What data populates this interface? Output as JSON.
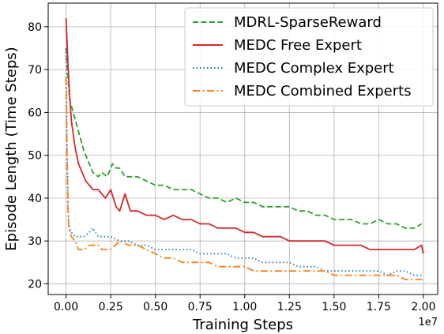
{
  "chart_data": {
    "type": "line",
    "xlabel": "Training Steps",
    "ylabel": "Episode Length (Time Steps)",
    "x_offset_label": "1e7",
    "xlim": [
      -0.1,
      2.08
    ],
    "ylim": [
      17.5,
      85.5
    ],
    "x_ticks": [
      0.0,
      0.25,
      0.5,
      0.75,
      1.0,
      1.25,
      1.5,
      1.75,
      2.0
    ],
    "x_tick_labels": [
      "0.00",
      "0.25",
      "0.50",
      "0.75",
      "1.00",
      "1.25",
      "1.50",
      "1.75",
      "2.00"
    ],
    "y_ticks": [
      20,
      30,
      40,
      50,
      60,
      70,
      80
    ],
    "y_tick_labels": [
      "20",
      "30",
      "40",
      "50",
      "60",
      "70",
      "80"
    ],
    "grid": true,
    "legend_position": "top-right",
    "series": [
      {
        "name": "MDRL-SparseReward",
        "color": "#2ca02c",
        "dash": "dashed",
        "x": [
          0.0,
          0.02,
          0.04,
          0.06,
          0.08,
          0.1,
          0.12,
          0.15,
          0.18,
          0.2,
          0.23,
          0.26,
          0.28,
          0.3,
          0.33,
          0.36,
          0.4,
          0.45,
          0.5,
          0.55,
          0.6,
          0.65,
          0.7,
          0.75,
          0.8,
          0.85,
          0.9,
          0.95,
          1.0,
          1.05,
          1.1,
          1.15,
          1.2,
          1.25,
          1.3,
          1.35,
          1.4,
          1.45,
          1.5,
          1.55,
          1.6,
          1.65,
          1.7,
          1.75,
          1.8,
          1.85,
          1.9,
          1.95,
          1.99
        ],
        "y": [
          75,
          63,
          60,
          57,
          54,
          51,
          49,
          46,
          45,
          46,
          45,
          48,
          47,
          47,
          45,
          45,
          45,
          44,
          43,
          43,
          42,
          42,
          42,
          41,
          40,
          40,
          39,
          40,
          39,
          39,
          38,
          38,
          38,
          38,
          37,
          37,
          36,
          36,
          35,
          35,
          35,
          34,
          34,
          35,
          34,
          34,
          33,
          33,
          34
        ]
      },
      {
        "name": "MEDC Free Expert",
        "color": "#d62728",
        "dash": "solid",
        "x": [
          0.0,
          0.01,
          0.02,
          0.03,
          0.05,
          0.07,
          0.09,
          0.11,
          0.13,
          0.15,
          0.18,
          0.2,
          0.22,
          0.25,
          0.28,
          0.3,
          0.33,
          0.36,
          0.4,
          0.45,
          0.5,
          0.55,
          0.6,
          0.65,
          0.7,
          0.75,
          0.8,
          0.85,
          0.9,
          0.95,
          1.0,
          1.05,
          1.1,
          1.15,
          1.2,
          1.25,
          1.3,
          1.35,
          1.4,
          1.45,
          1.5,
          1.55,
          1.6,
          1.65,
          1.7,
          1.75,
          1.8,
          1.85,
          1.9,
          1.95,
          1.99,
          2.0
        ],
        "y": [
          82,
          72,
          64,
          58,
          52,
          48,
          46,
          44,
          43,
          42,
          42,
          41,
          40,
          42,
          38,
          37,
          41,
          37,
          37,
          36,
          36,
          35,
          36,
          35,
          35,
          34,
          34,
          33,
          33,
          33,
          32,
          32,
          31,
          31,
          31,
          30,
          30,
          30,
          30,
          30,
          29,
          29,
          29,
          29,
          28,
          28,
          28,
          28,
          28,
          28,
          29,
          27
        ]
      },
      {
        "name": "MEDC Complex Expert",
        "color": "#1f77b4",
        "dash": "dotted",
        "x": [
          0.0,
          0.005,
          0.01,
          0.015,
          0.02,
          0.03,
          0.05,
          0.07,
          0.1,
          0.13,
          0.15,
          0.18,
          0.2,
          0.25,
          0.3,
          0.35,
          0.4,
          0.45,
          0.5,
          0.55,
          0.6,
          0.65,
          0.7,
          0.75,
          0.8,
          0.85,
          0.9,
          0.95,
          1.0,
          1.05,
          1.1,
          1.15,
          1.2,
          1.25,
          1.3,
          1.35,
          1.4,
          1.45,
          1.5,
          1.55,
          1.6,
          1.65,
          1.7,
          1.75,
          1.8,
          1.85,
          1.9,
          1.95,
          2.0
        ],
        "y": [
          75,
          55,
          40,
          34,
          33,
          32,
          31,
          31,
          31,
          32,
          33,
          31,
          31,
          31,
          30,
          30,
          29,
          29,
          28,
          28,
          28,
          28,
          28,
          27,
          27,
          27,
          27,
          26,
          26,
          26,
          25,
          25,
          25,
          25,
          24,
          24,
          24,
          23,
          23,
          23,
          23,
          23,
          23,
          23,
          22,
          23,
          23,
          22,
          22
        ]
      },
      {
        "name": "MEDC Combined Experts",
        "color": "#ff7f0e",
        "dash": "dashdot",
        "x": [
          0.0,
          0.005,
          0.01,
          0.015,
          0.02,
          0.03,
          0.05,
          0.07,
          0.1,
          0.13,
          0.15,
          0.18,
          0.2,
          0.25,
          0.3,
          0.35,
          0.4,
          0.45,
          0.5,
          0.55,
          0.6,
          0.65,
          0.7,
          0.75,
          0.8,
          0.85,
          0.9,
          0.95,
          1.0,
          1.05,
          1.1,
          1.15,
          1.2,
          1.25,
          1.3,
          1.35,
          1.4,
          1.45,
          1.5,
          1.55,
          1.6,
          1.65,
          1.7,
          1.75,
          1.8,
          1.85,
          1.9,
          1.95,
          2.0
        ],
        "y": [
          68,
          52,
          38,
          33,
          32,
          31,
          30,
          28,
          28,
          29,
          29,
          29,
          28,
          28,
          30,
          29,
          29,
          28,
          27,
          26,
          26,
          25,
          25,
          25,
          25,
          24,
          24,
          24,
          24,
          23,
          23,
          23,
          23,
          23,
          23,
          23,
          23,
          23,
          22,
          22,
          22,
          22,
          22,
          22,
          22,
          22,
          21,
          21,
          21
        ]
      }
    ]
  }
}
